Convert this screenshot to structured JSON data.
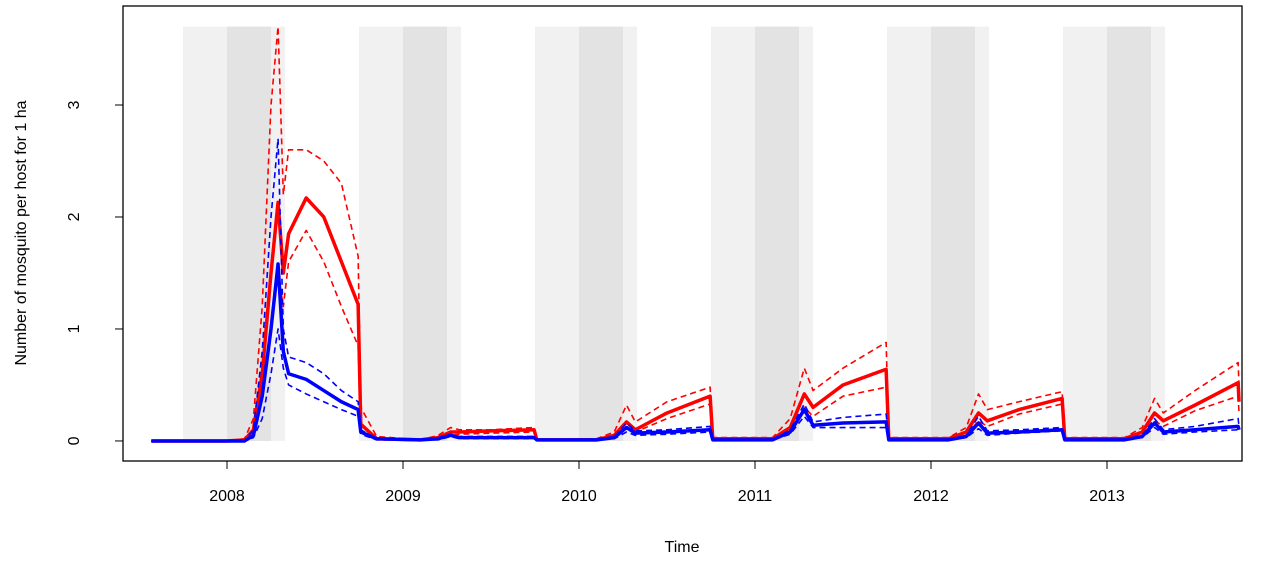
{
  "chart_data": {
    "type": "line",
    "x_label": "Time",
    "y_label": "Number of mosquito per host for 1 ha",
    "xlim": [
      2007.409,
      2013.767
    ],
    "ylim": [
      -0.179,
      3.884
    ],
    "xticks": [
      2008,
      2009,
      2010,
      2011,
      2012,
      2013
    ],
    "yticks": [
      0,
      1,
      2,
      3
    ],
    "band_top": 3.7,
    "bands": [
      {
        "range": [
          2007.75,
          2008.33
        ],
        "color": "#f1f1f1"
      },
      {
        "range": [
          2008.0,
          2008.25
        ],
        "color": "#e3e3e3"
      },
      {
        "range": [
          2008.75,
          2009.33
        ],
        "color": "#f1f1f1"
      },
      {
        "range": [
          2009.0,
          2009.25
        ],
        "color": "#e3e3e3"
      },
      {
        "range": [
          2009.75,
          2010.33
        ],
        "color": "#f1f1f1"
      },
      {
        "range": [
          2010.0,
          2010.25
        ],
        "color": "#e3e3e3"
      },
      {
        "range": [
          2010.75,
          2011.33
        ],
        "color": "#f1f1f1"
      },
      {
        "range": [
          2011.0,
          2011.25
        ],
        "color": "#e3e3e3"
      },
      {
        "range": [
          2011.75,
          2012.33
        ],
        "color": "#f1f1f1"
      },
      {
        "range": [
          2012.0,
          2012.25
        ],
        "color": "#e3e3e3"
      },
      {
        "range": [
          2012.75,
          2013.33
        ],
        "color": "#f1f1f1"
      },
      {
        "range": [
          2013.0,
          2013.25
        ],
        "color": "#e3e3e3"
      }
    ],
    "x": [
      2007.57,
      2007.75,
      2008.0,
      2008.1,
      2008.15,
      2008.2,
      2008.25,
      2008.29,
      2008.32,
      2008.35,
      2008.45,
      2008.55,
      2008.65,
      2008.745,
      2008.76,
      2008.85,
      2009.1,
      2009.2,
      2009.27,
      2009.32,
      2009.5,
      2009.745,
      2009.76,
      2010.1,
      2010.2,
      2010.27,
      2010.32,
      2010.5,
      2010.745,
      2010.76,
      2011.1,
      2011.2,
      2011.28,
      2011.33,
      2011.5,
      2011.745,
      2011.76,
      2012.1,
      2012.2,
      2012.27,
      2012.32,
      2012.5,
      2012.745,
      2012.76,
      2013.1,
      2013.2,
      2013.27,
      2013.32,
      2013.5,
      2013.745,
      2013.75
    ],
    "series": [
      {
        "color": "#ff0000",
        "style": "dashed",
        "values": [
          0,
          0,
          0,
          0.02,
          0.2,
          1.2,
          3.0,
          3.7,
          2.2,
          2.6,
          2.6,
          2.5,
          2.3,
          1.65,
          0.3,
          0.04,
          0.01,
          0.05,
          0.12,
          0.1,
          0.1,
          0.12,
          0.01,
          0.02,
          0.08,
          0.32,
          0.17,
          0.35,
          0.48,
          0.03,
          0.03,
          0.2,
          0.65,
          0.45,
          0.65,
          0.88,
          0.03,
          0.03,
          0.12,
          0.42,
          0.28,
          0.35,
          0.44,
          0.03,
          0.03,
          0.12,
          0.38,
          0.25,
          0.45,
          0.7,
          0.5
        ]
      },
      {
        "color": "#ff0000",
        "style": "dashed",
        "values": [
          0,
          0,
          0,
          0,
          0.05,
          0.4,
          1.0,
          1.5,
          1.2,
          1.6,
          1.88,
          1.6,
          1.2,
          0.85,
          0.1,
          0.01,
          0.01,
          0.02,
          0.05,
          0.06,
          0.07,
          0.08,
          0.01,
          0.01,
          0.03,
          0.12,
          0.08,
          0.2,
          0.33,
          0.01,
          0.01,
          0.08,
          0.3,
          0.22,
          0.4,
          0.48,
          0.01,
          0.01,
          0.05,
          0.18,
          0.13,
          0.24,
          0.33,
          0.01,
          0.01,
          0.05,
          0.18,
          0.13,
          0.27,
          0.4,
          0.25
        ]
      },
      {
        "color": "#ff0000",
        "style": "solid",
        "values": [
          0,
          0,
          0,
          0.01,
          0.1,
          0.6,
          1.5,
          2.13,
          1.5,
          1.85,
          2.17,
          2.0,
          1.6,
          1.22,
          0.15,
          0.02,
          0.01,
          0.03,
          0.08,
          0.08,
          0.09,
          0.1,
          0.01,
          0.01,
          0.05,
          0.17,
          0.1,
          0.25,
          0.4,
          0.02,
          0.02,
          0.12,
          0.42,
          0.3,
          0.5,
          0.64,
          0.02,
          0.02,
          0.08,
          0.25,
          0.18,
          0.28,
          0.38,
          0.02,
          0.02,
          0.08,
          0.25,
          0.18,
          0.32,
          0.52,
          0.35
        ]
      },
      {
        "color": "#0000ff",
        "style": "dashed",
        "values": [
          0,
          0,
          0,
          0,
          0.1,
          0.8,
          2.0,
          2.7,
          1.0,
          0.75,
          0.7,
          0.6,
          0.45,
          0.35,
          0.1,
          0.02,
          0.01,
          0.03,
          0.06,
          0.04,
          0.04,
          0.04,
          0.01,
          0.01,
          0.04,
          0.16,
          0.09,
          0.1,
          0.13,
          0.01,
          0.01,
          0.1,
          0.33,
          0.17,
          0.21,
          0.24,
          0.01,
          0.01,
          0.05,
          0.22,
          0.09,
          0.1,
          0.12,
          0.01,
          0.01,
          0.05,
          0.2,
          0.1,
          0.13,
          0.2,
          0.13
        ]
      },
      {
        "color": "#0000ff",
        "style": "dashed",
        "values": [
          0,
          0,
          0,
          0,
          0.03,
          0.2,
          0.6,
          1.0,
          0.65,
          0.5,
          0.42,
          0.35,
          0.28,
          0.22,
          0.06,
          0.01,
          0.01,
          0.01,
          0.04,
          0.02,
          0.02,
          0.02,
          0.01,
          0.01,
          0.02,
          0.08,
          0.05,
          0.06,
          0.08,
          0.01,
          0.01,
          0.06,
          0.22,
          0.12,
          0.12,
          0.12,
          0.01,
          0.01,
          0.03,
          0.11,
          0.05,
          0.07,
          0.09,
          0.01,
          0.01,
          0.03,
          0.12,
          0.06,
          0.08,
          0.1,
          0.08
        ]
      },
      {
        "color": "#0000ff",
        "style": "solid",
        "values": [
          0,
          0,
          0,
          0,
          0.05,
          0.4,
          1.0,
          1.58,
          0.8,
          0.6,
          0.55,
          0.45,
          0.35,
          0.28,
          0.08,
          0.02,
          0.01,
          0.02,
          0.05,
          0.03,
          0.03,
          0.03,
          0.01,
          0.01,
          0.03,
          0.12,
          0.07,
          0.08,
          0.1,
          0.01,
          0.01,
          0.08,
          0.28,
          0.14,
          0.16,
          0.17,
          0.01,
          0.01,
          0.04,
          0.16,
          0.07,
          0.08,
          0.1,
          0.01,
          0.01,
          0.04,
          0.16,
          0.08,
          0.1,
          0.13,
          0.1
        ]
      }
    ]
  }
}
